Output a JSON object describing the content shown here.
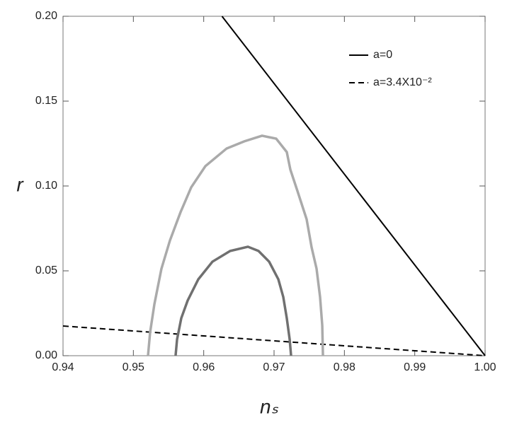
{
  "chart_data": {
    "type": "line",
    "x_label": "nₛ",
    "y_label": "r",
    "xlim": [
      0.94,
      1.0
    ],
    "xticks": [
      0.94,
      0.95,
      0.96,
      0.97,
      0.98,
      0.99,
      {
        "value": 1,
        "label": "1.00"
      }
    ],
    "ylim": [
      0,
      0.2
    ],
    "yticks": [
      {
        "value": 0,
        "label": "0.00"
      },
      0.05,
      {
        "value": 0.1,
        "label": "0.10"
      },
      0.15,
      {
        "value": 0.2,
        "label": "0.20"
      }
    ],
    "grid": false,
    "legend": "upper right",
    "series": [
      {
        "name": "a=0",
        "color": "#000000",
        "dash": false,
        "x": [
          0.9626,
          1.0
        ],
        "values": [
          0.2,
          0.0
        ]
      },
      {
        "name": "a=3.4X10⁻²",
        "color": "#000000",
        "dash": true,
        "x": [
          0.94,
          1.0
        ],
        "values": [
          0.0175,
          0.0
        ]
      },
      {
        "color": "#aaaaaa",
        "dash": false,
        "x": [
          0.95208,
          0.95238,
          0.95299,
          0.95399,
          0.9552,
          0.95671,
          0.95822,
          0.96024,
          0.96326,
          0.96577,
          0.96829,
          0.9703,
          0.97181,
          0.97232,
          0.97332,
          0.97463,
          0.97534,
          0.97604,
          0.97654,
          0.97685,
          0.97695
        ],
        "values": [
          0,
          0.01375,
          0.0304,
          0.05125,
          0.0679,
          0.0846,
          0.0992,
          0.1117,
          0.1221,
          0.1263,
          0.1296,
          0.1279,
          0.12,
          0.1096,
          0.0971,
          0.0804,
          0.0638,
          0.0513,
          0.0346,
          0.0179,
          0
        ]
      },
      {
        "color": "#707070",
        "dash": false,
        "x": [
          0.956,
          0.95621,
          0.95681,
          0.95772,
          0.95923,
          0.96124,
          0.96376,
          0.96628,
          0.96779,
          0.9693,
          0.97061,
          0.97131,
          0.97181,
          0.97222,
          0.97242
        ],
        "values": [
          0,
          0.0096,
          0.0221,
          0.0325,
          0.045,
          0.0554,
          0.0617,
          0.0642,
          0.0617,
          0.0554,
          0.045,
          0.0346,
          0.0221,
          0.0096,
          0
        ]
      }
    ]
  }
}
